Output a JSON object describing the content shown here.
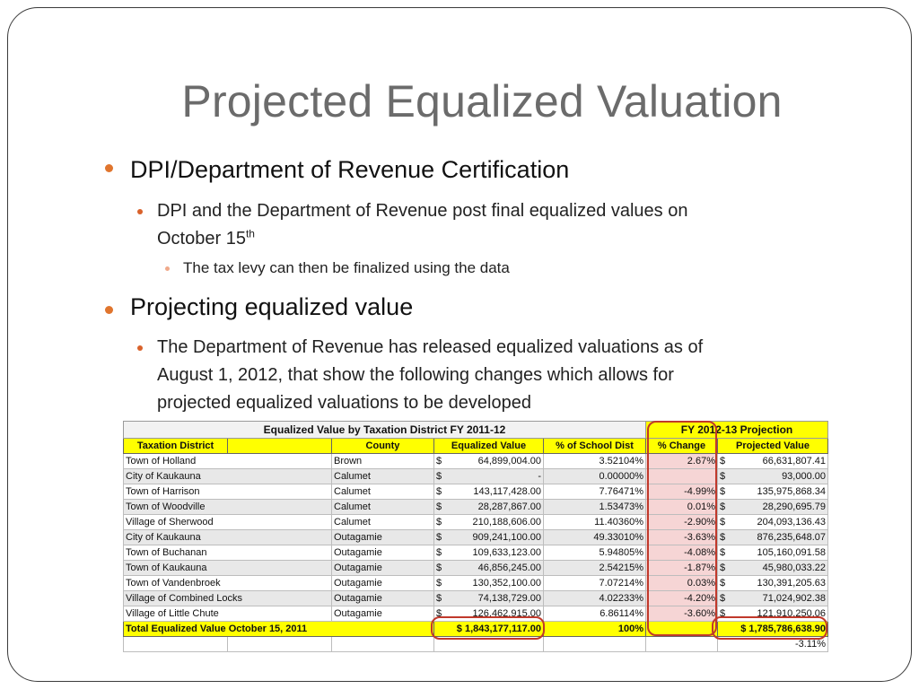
{
  "title": "Projected Equalized Valuation",
  "bullets": {
    "b1_a": "DPI/Department of Revenue Certification",
    "b2_a_line1": "DPI and the Department of Revenue post final equalized values on",
    "b2_a_line2": "October 15",
    "b2_a_sup": "th",
    "b3_a": "The tax levy can then be finalized using the data",
    "b1_b": "Projecting equalized value",
    "b2_b_line1": "The Department of Revenue has released equalized valuations as of",
    "b2_b_line2": "August 1, 2012, that show the following changes which allows for",
    "b2_b_line3": "projected equalized valuations to be developed"
  },
  "table": {
    "header_left": "Equalized Value by Taxation District FY 2011-12",
    "header_right": "FY 2012-13 Projection",
    "columns": [
      "Taxation District",
      "",
      "County",
      "Equalized Value",
      "% of School Dist",
      "% Change",
      "Projected Value"
    ],
    "currency": "$",
    "rows": [
      {
        "district": "Town of Holland",
        "county": "Brown",
        "eq": "64,899,004.00",
        "share": "3.52104%",
        "change": "2.67%",
        "proj": "66,631,807.41"
      },
      {
        "district": "City of Kaukauna",
        "county": "Calumet",
        "eq": "-",
        "share": "0.00000%",
        "change": "",
        "proj": "93,000.00"
      },
      {
        "district": "Town of Harrison",
        "county": "Calumet",
        "eq": "143,117,428.00",
        "share": "7.76471%",
        "change": "-4.99%",
        "proj": "135,975,868.34"
      },
      {
        "district": "Town of Woodville",
        "county": "Calumet",
        "eq": "28,287,867.00",
        "share": "1.53473%",
        "change": "0.01%",
        "proj": "28,290,695.79"
      },
      {
        "district": "Village of Sherwood",
        "county": "Calumet",
        "eq": "210,188,606.00",
        "share": "11.40360%",
        "change": "-2.90%",
        "proj": "204,093,136.43"
      },
      {
        "district": "City of Kaukauna",
        "county": "Outagamie",
        "eq": "909,241,100.00",
        "share": "49.33010%",
        "change": "-3.63%",
        "proj": "876,235,648.07"
      },
      {
        "district": "Town of Buchanan",
        "county": "Outagamie",
        "eq": "109,633,123.00",
        "share": "5.94805%",
        "change": "-4.08%",
        "proj": "105,160,091.58"
      },
      {
        "district": "Town of Kaukauna",
        "county": "Outagamie",
        "eq": "46,856,245.00",
        "share": "2.54215%",
        "change": "-1.87%",
        "proj": "45,980,033.22"
      },
      {
        "district": "Town of Vandenbroek",
        "county": "Outagamie",
        "eq": "130,352,100.00",
        "share": "7.07214%",
        "change": "0.03%",
        "proj": "130,391,205.63"
      },
      {
        "district": "Village of Combined Locks",
        "county": "Outagamie",
        "eq": "74,138,729.00",
        "share": "4.02233%",
        "change": "-4.20%",
        "proj": "71,024,902.38"
      },
      {
        "district": "Village of Little Chute",
        "county": "Outagamie",
        "eq": "126,462,915.00",
        "share": "6.86114%",
        "change": "-3.60%",
        "proj": "121,910,250.06"
      }
    ],
    "total": {
      "label": "Total Equalized Value October 15, 2011",
      "eq": "$ 1,843,177,117.00",
      "share": "100%",
      "proj": "$  1,785,786,638.90"
    },
    "overall_change": "-3.11%"
  },
  "colors": {
    "title": "#6b6b6b",
    "bullet": "#e0752e",
    "highlight": "#ffff00",
    "annotation": "#c0392b",
    "change_column": "#f6d5d5"
  }
}
